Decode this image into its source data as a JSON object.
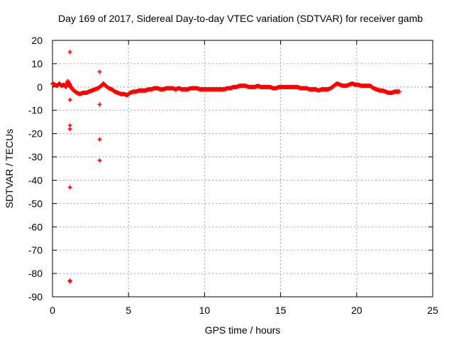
{
  "chart_data": {
    "type": "scatter",
    "title": "Day 169 of 2017, Sidereal Day-to-day VTEC variation (SDTVAR) for receiver gamb",
    "xlabel": "GPS time / hours",
    "ylabel": "SDTVAR / TECUs",
    "xlim": [
      0,
      25
    ],
    "ylim": [
      -90,
      20
    ],
    "xticks": [
      0,
      5,
      10,
      15,
      20,
      25
    ],
    "yticks": [
      20,
      10,
      0,
      -10,
      -20,
      -30,
      -40,
      -50,
      -60,
      -70,
      -80,
      -90
    ],
    "xtick_labels": [
      "0",
      "5",
      "10",
      "15",
      "20",
      "25"
    ],
    "ytick_labels": [
      "20",
      "10",
      "0",
      "-10",
      "-20",
      "-30",
      "-40",
      "-50",
      "-60",
      "-70",
      "-80",
      "-90"
    ],
    "grid": true,
    "marker": "plus",
    "series_color": "#ff0000",
    "series": [
      {
        "name": "SDTVAR",
        "x": [
          0.0,
          0.15,
          0.3,
          0.45,
          0.6,
          0.75,
          0.9,
          1.0,
          1.1,
          1.15,
          1.25,
          1.4,
          1.6,
          1.8,
          2.0,
          2.2,
          2.4,
          2.6,
          2.8,
          3.0,
          3.2,
          3.35,
          3.5,
          3.7,
          3.9,
          4.1,
          4.3,
          4.5,
          4.7,
          4.9,
          5.1,
          5.3,
          5.5,
          5.7,
          5.9,
          6.1,
          6.3,
          6.5,
          6.7,
          6.9,
          7.1,
          7.3,
          7.5,
          7.7,
          7.9,
          8.1,
          8.3,
          8.5,
          8.7,
          8.9,
          9.1,
          9.3,
          9.5,
          9.7,
          9.9,
          10.1,
          10.3,
          10.5,
          10.7,
          10.9,
          11.1,
          11.3,
          11.5,
          11.7,
          11.9,
          12.1,
          12.3,
          12.5,
          12.7,
          12.9,
          13.1,
          13.3,
          13.5,
          13.7,
          13.9,
          14.1,
          14.3,
          14.5,
          14.7,
          14.9,
          15.1,
          15.3,
          15.5,
          15.7,
          15.9,
          16.1,
          16.3,
          16.5,
          16.7,
          16.9,
          17.1,
          17.3,
          17.5,
          17.7,
          17.9,
          18.1,
          18.3,
          18.5,
          18.7,
          18.9,
          19.1,
          19.3,
          19.5,
          19.7,
          19.9,
          20.1,
          20.3,
          20.5,
          20.7,
          20.9,
          21.1,
          21.3,
          21.5,
          21.7,
          21.9,
          22.1,
          22.3,
          22.5,
          22.7,
          22.8,
          1.15,
          1.15,
          1.15,
          1.15,
          1.15,
          1.15,
          1.15,
          3.1,
          3.1,
          3.1,
          3.1
        ],
        "y": [
          1.5,
          1.0,
          0.5,
          1.5,
          0.5,
          1.0,
          0.0,
          2.5,
          1.5,
          0.5,
          -0.5,
          -1.5,
          -2.5,
          -3.0,
          -2.5,
          -2.5,
          -2.0,
          -1.5,
          -1.0,
          -0.5,
          0.5,
          1.5,
          0.5,
          -0.5,
          -1.0,
          -2.0,
          -2.5,
          -3.0,
          -3.0,
          -3.5,
          -2.5,
          -2.0,
          -2.0,
          -1.5,
          -1.5,
          -1.5,
          -1.0,
          -1.0,
          -0.5,
          -0.5,
          -1.0,
          -1.0,
          -0.5,
          -0.5,
          -0.5,
          -1.0,
          -0.5,
          -1.0,
          -1.0,
          -1.0,
          -0.5,
          -0.5,
          -0.5,
          -1.0,
          -1.0,
          -1.0,
          -1.0,
          -1.0,
          -1.0,
          -1.0,
          -1.0,
          -1.0,
          -0.5,
          -0.5,
          0.0,
          0.0,
          0.5,
          0.5,
          0.5,
          0.0,
          0.0,
          0.0,
          0.5,
          0.0,
          0.0,
          0.0,
          0.0,
          -0.5,
          -0.5,
          0.0,
          0.0,
          0.0,
          0.0,
          0.0,
          0.0,
          0.0,
          -0.5,
          -0.5,
          -0.5,
          -1.0,
          -1.0,
          -1.0,
          -1.5,
          -1.0,
          -1.0,
          -1.0,
          -0.5,
          0.5,
          1.5,
          1.0,
          0.5,
          0.5,
          1.0,
          1.5,
          1.0,
          1.0,
          0.5,
          0.5,
          0.5,
          0.5,
          -0.5,
          -1.0,
          -1.5,
          -1.5,
          -2.0,
          -2.5,
          -2.5,
          -2.0,
          -2.0,
          -2.0,
          15.0,
          -5.5,
          -16.5,
          -18.0,
          -43.0,
          -83.0,
          -83.5,
          6.5,
          -7.5,
          -22.5,
          -31.5
        ]
      }
    ]
  }
}
